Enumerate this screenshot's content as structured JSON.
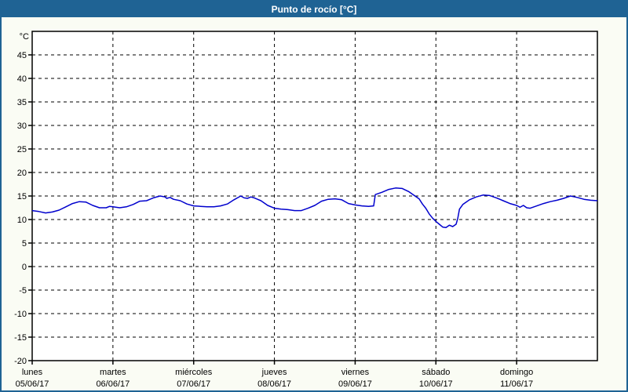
{
  "header": {
    "title": "Punto de rocío [°C]"
  },
  "colors": {
    "header_bg": "#1F6394",
    "header_text": "#FFFFFF",
    "page_bg": "#FAFCF4",
    "plot_bg": "#FFFFFF",
    "grid": "#000000",
    "line": "#0000CD"
  },
  "chart_data": {
    "type": "line",
    "title": "Punto de rocío [°C]",
    "ylabel": "°C",
    "ylim": [
      -20,
      50
    ],
    "y_ticks": [
      45,
      40,
      35,
      30,
      25,
      20,
      15,
      10,
      5,
      0,
      -5,
      -10,
      -15,
      -20
    ],
    "grid": "dashed",
    "legend": "none",
    "x_hours_total": 168,
    "x_days": [
      {
        "name": "lunes",
        "date": "05/06/17"
      },
      {
        "name": "martes",
        "date": "06/06/17"
      },
      {
        "name": "miércoles",
        "date": "07/06/17"
      },
      {
        "name": "jueves",
        "date": "08/06/17"
      },
      {
        "name": "viernes",
        "date": "09/06/17"
      },
      {
        "name": "sábado",
        "date": "10/06/17"
      },
      {
        "name": "domingo",
        "date": "11/06/17"
      }
    ],
    "series": [
      {
        "color": "#0000CD",
        "points": [
          [
            0,
            11.9
          ],
          [
            2,
            11.7
          ],
          [
            4,
            11.4
          ],
          [
            6,
            11.6
          ],
          [
            8,
            12.0
          ],
          [
            10,
            12.7
          ],
          [
            12,
            13.4
          ],
          [
            14,
            13.8
          ],
          [
            16,
            13.7
          ],
          [
            18,
            13.0
          ],
          [
            20,
            12.5
          ],
          [
            22,
            12.5
          ],
          [
            23,
            12.8
          ],
          [
            24,
            12.7
          ],
          [
            26,
            12.5
          ],
          [
            28,
            12.7
          ],
          [
            30,
            13.2
          ],
          [
            32,
            13.9
          ],
          [
            34,
            14.0
          ],
          [
            36,
            14.6
          ],
          [
            38,
            15.0
          ],
          [
            39.5,
            14.8
          ],
          [
            40,
            14.5
          ],
          [
            41,
            14.7
          ],
          [
            42,
            14.3
          ],
          [
            44,
            14.0
          ],
          [
            46,
            13.3
          ],
          [
            48,
            12.9
          ],
          [
            50,
            12.8
          ],
          [
            52,
            12.7
          ],
          [
            54,
            12.7
          ],
          [
            56,
            12.9
          ],
          [
            58,
            13.3
          ],
          [
            60,
            14.2
          ],
          [
            62,
            15.0
          ],
          [
            63,
            14.6
          ],
          [
            64,
            14.5
          ],
          [
            65,
            14.8
          ],
          [
            66,
            14.6
          ],
          [
            68,
            14.0
          ],
          [
            70,
            13.0
          ],
          [
            72,
            12.4
          ],
          [
            74,
            12.2
          ],
          [
            76,
            12.1
          ],
          [
            78,
            11.9
          ],
          [
            80,
            11.9
          ],
          [
            82,
            12.4
          ],
          [
            84,
            13.0
          ],
          [
            86,
            13.9
          ],
          [
            88,
            14.3
          ],
          [
            90,
            14.4
          ],
          [
            92,
            14.2
          ],
          [
            94,
            13.4
          ],
          [
            96,
            13.1
          ],
          [
            98,
            12.9
          ],
          [
            100,
            12.8
          ],
          [
            101.5,
            12.9
          ],
          [
            102,
            15.3
          ],
          [
            104,
            15.8
          ],
          [
            106,
            16.4
          ],
          [
            108,
            16.7
          ],
          [
            110,
            16.6
          ],
          [
            112,
            15.9
          ],
          [
            113,
            15.4
          ],
          [
            114,
            14.9
          ],
          [
            115,
            14.4
          ],
          [
            116,
            13.3
          ],
          [
            117,
            12.4
          ],
          [
            118,
            11.2
          ],
          [
            119,
            10.3
          ],
          [
            120,
            9.6
          ],
          [
            121,
            9.0
          ],
          [
            122,
            8.4
          ],
          [
            123,
            8.3
          ],
          [
            124,
            8.8
          ],
          [
            125,
            8.5
          ],
          [
            126,
            9.0
          ],
          [
            126.5,
            10.2
          ],
          [
            127,
            12.2
          ],
          [
            128,
            13.2
          ],
          [
            129,
            13.7
          ],
          [
            130,
            14.2
          ],
          [
            132,
            14.8
          ],
          [
            134,
            15.2
          ],
          [
            136,
            15.1
          ],
          [
            138,
            14.6
          ],
          [
            140,
            14.0
          ],
          [
            142,
            13.4
          ],
          [
            144,
            13.0
          ],
          [
            145,
            12.6
          ],
          [
            146,
            13.0
          ],
          [
            147,
            12.5
          ],
          [
            148,
            12.4
          ],
          [
            150,
            12.9
          ],
          [
            152,
            13.4
          ],
          [
            154,
            13.8
          ],
          [
            156,
            14.1
          ],
          [
            158,
            14.5
          ],
          [
            160,
            15.0
          ],
          [
            162,
            14.7
          ],
          [
            164,
            14.3
          ],
          [
            166,
            14.1
          ],
          [
            168,
            14.0
          ]
        ]
      }
    ]
  }
}
